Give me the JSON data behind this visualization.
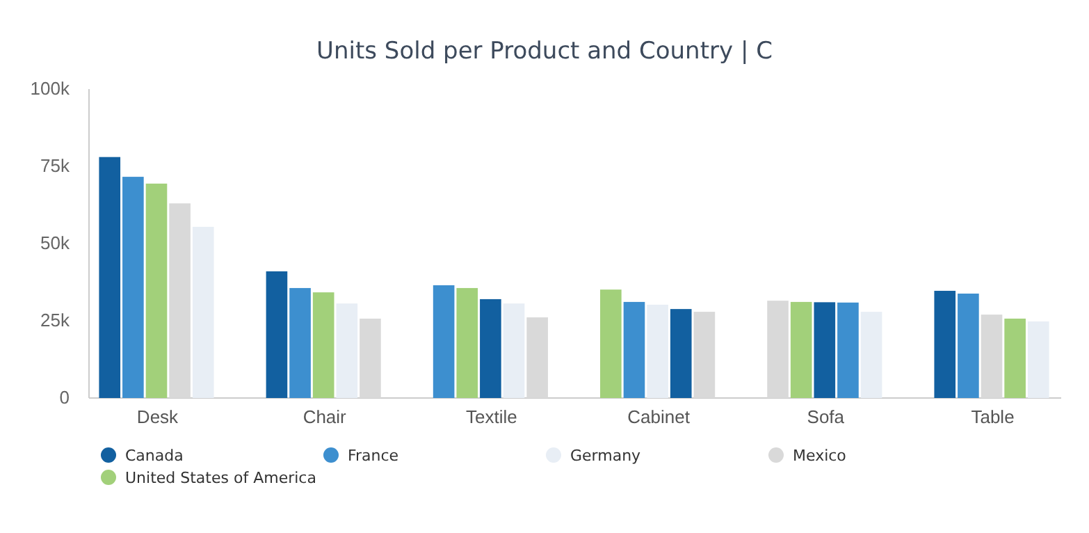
{
  "chart_data": {
    "type": "bar",
    "title": "Units Sold per Product and Country | C",
    "categories": [
      "Desk",
      "Chair",
      "Textile",
      "Cabinet",
      "Sofa",
      "Table"
    ],
    "series": [
      {
        "name": "Canada",
        "color": "#1260a0",
        "values": [
          78,
          41,
          32,
          28.8,
          31.0,
          34.7
        ]
      },
      {
        "name": "France",
        "color": "#3d8fcf",
        "values": [
          71.6,
          35.6,
          36.5,
          31.1,
          30.9,
          33.8
        ]
      },
      {
        "name": "Germany",
        "color": "#e8eef5",
        "values": [
          55.4,
          30.6,
          30.6,
          30.2,
          27.9,
          24.8
        ]
      },
      {
        "name": "Mexico",
        "color": "#d9d9d9",
        "values": [
          63,
          25.7,
          26.1,
          27.9,
          31.5,
          27
        ]
      },
      {
        "name": "United States of America",
        "color": "#a2d07a",
        "values": [
          69.4,
          34.2,
          35.6,
          35.1,
          31.1,
          25.7
        ]
      }
    ],
    "ylim": [
      0,
      100
    ],
    "yticks": [
      {
        "value": 0,
        "label": "0"
      },
      {
        "value": 25,
        "label": "25k"
      },
      {
        "value": 50,
        "label": "50k"
      },
      {
        "value": 75,
        "label": "75k"
      },
      {
        "value": 100,
        "label": "100k"
      }
    ],
    "legend": "bottom"
  }
}
